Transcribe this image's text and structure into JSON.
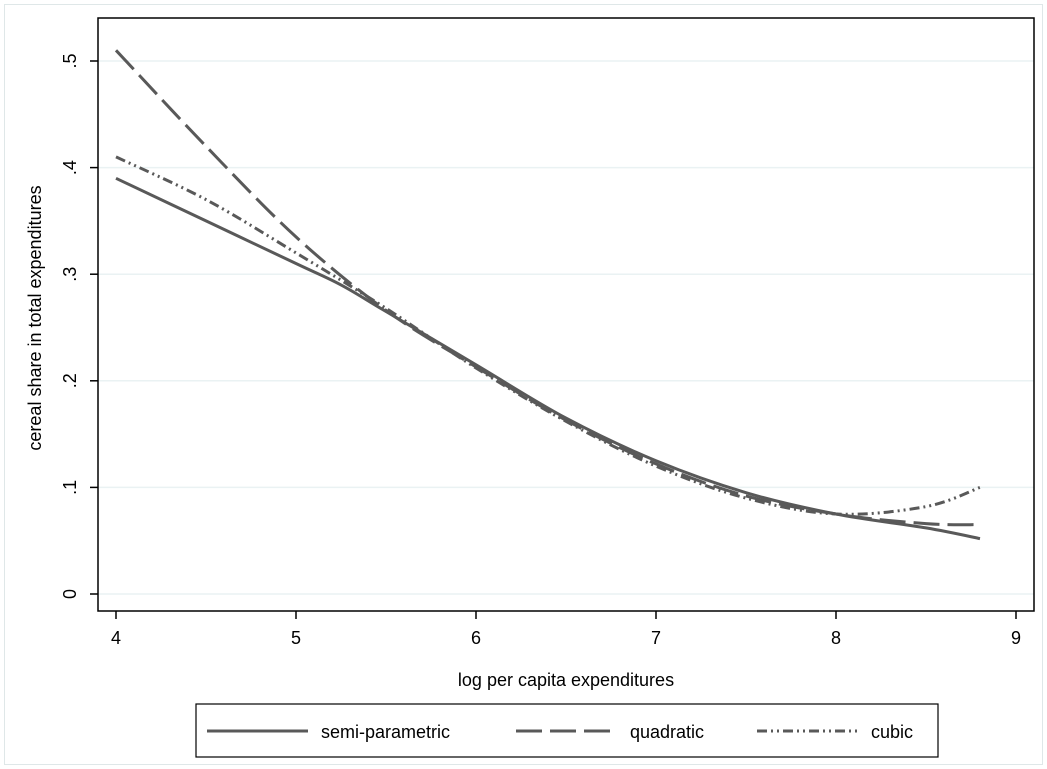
{
  "chart_data": {
    "type": "line",
    "title": "",
    "xlabel": "log per capita expenditures",
    "ylabel": "cereal share in total expenditures",
    "xlim": [
      4,
      9
    ],
    "ylim": [
      0,
      0.5
    ],
    "x_ticks": [
      4,
      5,
      6,
      7,
      8,
      9
    ],
    "x_tick_labels": [
      "4",
      "5",
      "6",
      "7",
      "8",
      "9"
    ],
    "y_ticks": [
      0,
      0.1,
      0.2,
      0.3,
      0.4,
      0.5
    ],
    "y_tick_labels": [
      "0",
      ".1",
      ".2",
      ".3",
      ".4",
      ".5"
    ],
    "grid": true,
    "legend_position": "bottom",
    "line_color": "#595959",
    "grid_color": "#eaf2f3",
    "series": [
      {
        "name": "semi-parametric",
        "style": "solid",
        "x": [
          4.0,
          4.5,
          5.0,
          5.25,
          5.5,
          6.0,
          6.5,
          7.0,
          7.5,
          8.0,
          8.5,
          8.8
        ],
        "y": [
          0.39,
          0.35,
          0.31,
          0.29,
          0.265,
          0.215,
          0.165,
          0.125,
          0.095,
          0.075,
          0.062,
          0.052
        ]
      },
      {
        "name": "quadratic",
        "style": "dashed",
        "x": [
          4.0,
          4.5,
          5.0,
          5.5,
          6.0,
          6.5,
          7.0,
          7.5,
          8.0,
          8.5,
          8.8
        ],
        "y": [
          0.51,
          0.42,
          0.335,
          0.266,
          0.213,
          0.163,
          0.122,
          0.092,
          0.075,
          0.066,
          0.065
        ]
      },
      {
        "name": "cubic",
        "style": "dashdot",
        "x": [
          4.0,
          4.5,
          5.0,
          5.5,
          6.0,
          6.5,
          7.0,
          7.5,
          8.0,
          8.5,
          8.8
        ],
        "y": [
          0.41,
          0.37,
          0.32,
          0.268,
          0.212,
          0.162,
          0.12,
          0.09,
          0.075,
          0.082,
          0.1
        ]
      }
    ]
  }
}
